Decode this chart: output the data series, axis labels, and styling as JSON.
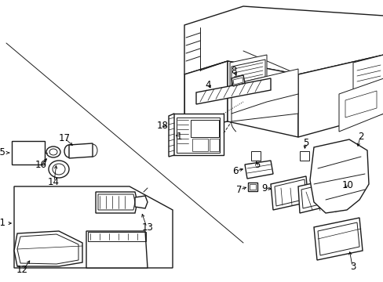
{
  "background_color": "#ffffff",
  "line_color": "#1a1a1a",
  "text_color": "#000000",
  "fig_width": 4.89,
  "fig_height": 3.6,
  "dpi": 100,
  "label_fontsize": 8.5
}
